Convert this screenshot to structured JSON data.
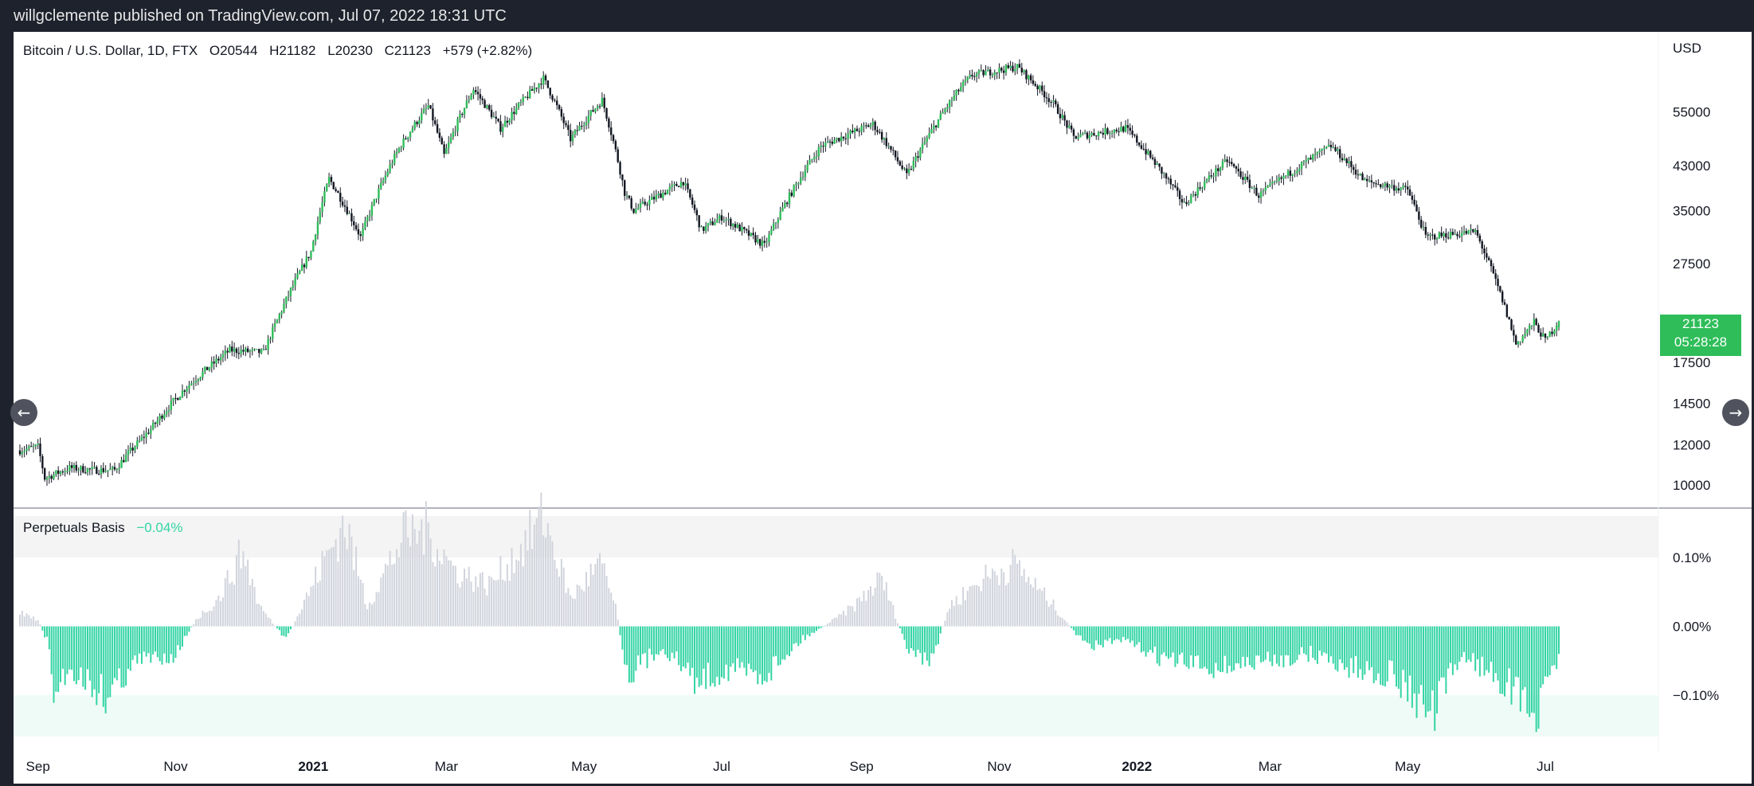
{
  "header": {
    "attribution": "willgclemente published on TradingView.com, Jul 07, 2022 18:31 UTC"
  },
  "legend": {
    "symbol": "Bitcoin / U.S. Dollar, 1D, FTX",
    "open": "O20544",
    "high": "H21182",
    "low": "L20230",
    "close": "C21123",
    "change": "+579 (+2.82%)"
  },
  "price_tag": {
    "price": "21123",
    "countdown": "05:28:28"
  },
  "currency": "USD",
  "indicator": {
    "name": "Perpetuals Basis",
    "value": "−0.04%"
  },
  "colors": {
    "up": "#2ebd59",
    "down": "#131722",
    "basis_pos": "#d1d4dc",
    "basis_neg": "#34d4a4"
  },
  "chart_data": [
    {
      "type": "candlestick",
      "title": "Bitcoin / U.S. Dollar, 1D, FTX",
      "scale": "log",
      "ylabel": "USD",
      "y_ticks": [
        10000,
        12000,
        14500,
        17500,
        27500,
        35000,
        43000,
        55000
      ],
      "y_tick_labels": [
        "10000",
        "12000",
        "14500",
        "17500",
        "27500",
        "35000",
        "43000",
        "55000"
      ],
      "ylim": [
        9600,
        70000
      ],
      "x_tick_labels": [
        "Sep",
        "Nov",
        "2021",
        "Mar",
        "May",
        "Jul",
        "Sep",
        "Nov",
        "2022",
        "Mar",
        "May",
        "Jul"
      ],
      "x_ticks": [
        "2020-09",
        "2020-11",
        "2021-01",
        "2021-03",
        "2021-05",
        "2021-07",
        "2021-09",
        "2021-11",
        "2022-01",
        "2022-03",
        "2022-05",
        "2022-07"
      ],
      "xlim": [
        "2020-08-24",
        "2022-07-07"
      ],
      "series": [
        {
          "name": "BTCUSD close",
          "points": [
            [
              "2020-08-24",
              11700
            ],
            [
              "2020-09-01",
              11900
            ],
            [
              "2020-09-04",
              10300
            ],
            [
              "2020-09-15",
              10800
            ],
            [
              "2020-09-25",
              10700
            ],
            [
              "2020-10-05",
              10700
            ],
            [
              "2020-10-21",
              12900
            ],
            [
              "2020-11-05",
              15500
            ],
            [
              "2020-11-25",
              18500
            ],
            [
              "2020-12-10",
              18300
            ],
            [
              "2020-12-16",
              21200
            ],
            [
              "2020-12-31",
              29000
            ],
            [
              "2021-01-08",
              40500
            ],
            [
              "2021-01-22",
              31000
            ],
            [
              "2021-02-08",
              46500
            ],
            [
              "2021-02-21",
              56500
            ],
            [
              "2021-02-28",
              45000
            ],
            [
              "2021-03-13",
              61000
            ],
            [
              "2021-03-25",
              51000
            ],
            [
              "2021-04-13",
              64000
            ],
            [
              "2021-04-25",
              48500
            ],
            [
              "2021-05-09",
              58000
            ],
            [
              "2021-05-19",
              38000
            ],
            [
              "2021-05-23",
              35000
            ],
            [
              "2021-06-14",
              40000
            ],
            [
              "2021-06-22",
              32000
            ],
            [
              "2021-07-01",
              34000
            ],
            [
              "2021-07-20",
              29800
            ],
            [
              "2021-08-14",
              47000
            ],
            [
              "2021-09-06",
              52000
            ],
            [
              "2021-09-21",
              41000
            ],
            [
              "2021-10-15",
              61500
            ],
            [
              "2021-10-20",
              65000
            ],
            [
              "2021-11-09",
              67500
            ],
            [
              "2021-11-25",
              57000
            ],
            [
              "2021-12-04",
              49000
            ],
            [
              "2021-12-27",
              51000
            ],
            [
              "2022-01-22",
              36000
            ],
            [
              "2022-02-10",
              44000
            ],
            [
              "2022-02-24",
              37500
            ],
            [
              "2022-03-28",
              47000
            ],
            [
              "2022-04-12",
              40000
            ],
            [
              "2022-05-01",
              38500
            ],
            [
              "2022-05-09",
              31000
            ],
            [
              "2022-05-31",
              31800
            ],
            [
              "2022-06-13",
              22500
            ],
            [
              "2022-06-18",
              19000
            ],
            [
              "2022-06-26",
              21000
            ],
            [
              "2022-07-01",
              19300
            ],
            [
              "2022-07-07",
              21123
            ]
          ]
        }
      ],
      "last": {
        "open": 20544,
        "high": 21182,
        "low": 20230,
        "close": 21123
      }
    },
    {
      "type": "bar",
      "title": "Perpetuals Basis",
      "y_tick_labels": [
        "0.10%",
        "0.00%",
        "−0.10%"
      ],
      "ylim": [
        -0.16,
        0.16
      ],
      "unit": "%",
      "last_value": -0.04,
      "series": [
        {
          "name": "Perpetuals Basis",
          "points": [
            [
              "2020-08-24",
              0.02
            ],
            [
              "2020-09-01",
              0.01
            ],
            [
              "2020-09-05",
              -0.02
            ],
            [
              "2020-09-08",
              -0.1
            ],
            [
              "2020-09-15",
              -0.06
            ],
            [
              "2020-10-01",
              -0.1
            ],
            [
              "2020-10-15",
              -0.05
            ],
            [
              "2020-11-01",
              -0.04
            ],
            [
              "2020-11-10",
              0.01
            ],
            [
              "2020-11-20",
              0.04
            ],
            [
              "2020-12-01",
              0.11
            ],
            [
              "2020-12-08",
              0.03
            ],
            [
              "2020-12-20",
              -0.02
            ],
            [
              "2021-01-05",
              0.09
            ],
            [
              "2021-01-15",
              0.15
            ],
            [
              "2021-01-25",
              0.03
            ],
            [
              "2021-02-10",
              0.13
            ],
            [
              "2021-02-20",
              0.14
            ],
            [
              "2021-03-05",
              0.08
            ],
            [
              "2021-03-20",
              0.06
            ],
            [
              "2021-04-05",
              0.12
            ],
            [
              "2021-04-13",
              0.16
            ],
            [
              "2021-04-25",
              0.04
            ],
            [
              "2021-05-08",
              0.09
            ],
            [
              "2021-05-15",
              0.03
            ],
            [
              "2021-05-20",
              -0.07
            ],
            [
              "2021-06-05",
              -0.03
            ],
            [
              "2021-06-20",
              -0.08
            ],
            [
              "2021-07-05",
              -0.06
            ],
            [
              "2021-07-20",
              -0.07
            ],
            [
              "2021-08-05",
              -0.02
            ],
            [
              "2021-08-20",
              0.01
            ],
            [
              "2021-08-29",
              0.03
            ],
            [
              "2021-09-10",
              0.07
            ],
            [
              "2021-09-21",
              -0.03
            ],
            [
              "2021-10-01",
              -0.06
            ],
            [
              "2021-10-10",
              0.03
            ],
            [
              "2021-10-25",
              0.07
            ],
            [
              "2021-11-08",
              0.09
            ],
            [
              "2021-11-25",
              0.03
            ],
            [
              "2021-12-10",
              -0.03
            ],
            [
              "2021-12-25",
              -0.02
            ],
            [
              "2022-01-15",
              -0.05
            ],
            [
              "2022-02-05",
              -0.06
            ],
            [
              "2022-03-01",
              -0.05
            ],
            [
              "2022-03-20",
              -0.04
            ],
            [
              "2022-04-05",
              -0.06
            ],
            [
              "2022-04-25",
              -0.07
            ],
            [
              "2022-05-12",
              -0.13
            ],
            [
              "2022-05-25",
              -0.04
            ],
            [
              "2022-06-13",
              -0.08
            ],
            [
              "2022-06-28",
              -0.13
            ],
            [
              "2022-07-07",
              -0.04
            ]
          ]
        }
      ]
    }
  ]
}
